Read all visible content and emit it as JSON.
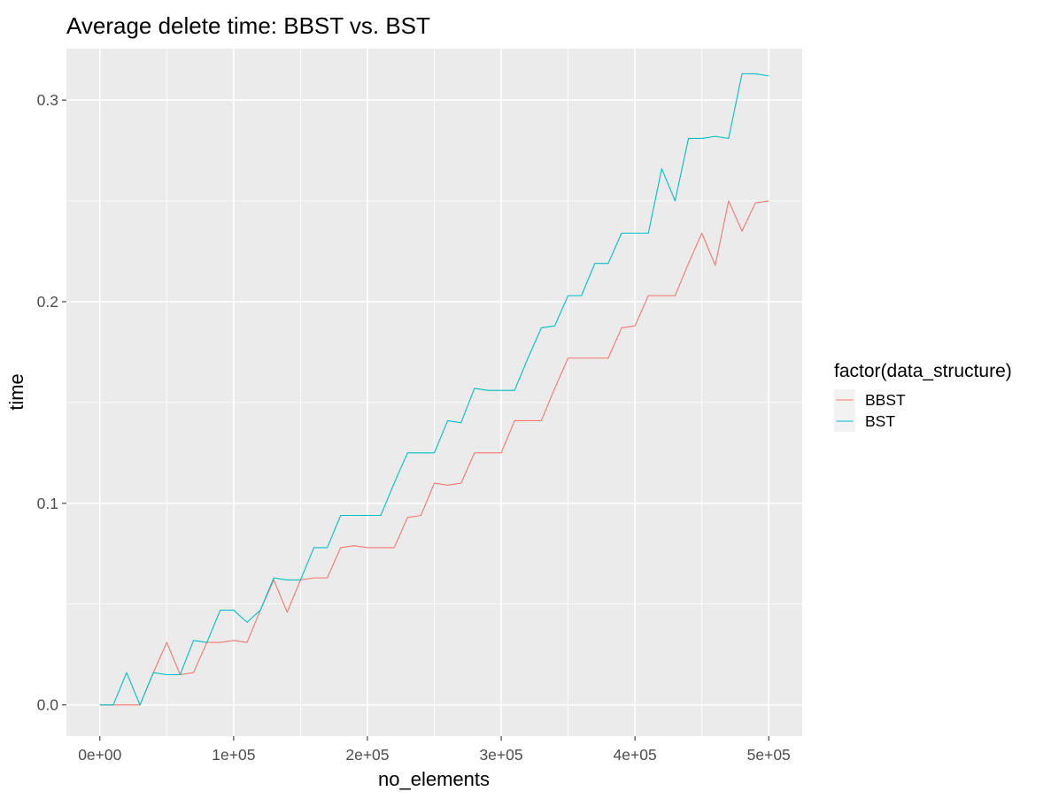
{
  "chart_data": {
    "type": "line",
    "title": "Average delete time: BBST vs. BST",
    "xlabel": "no_elements",
    "ylabel": "time",
    "xlim": [
      -25000,
      525000
    ],
    "ylim": [
      -0.0155,
      0.3255
    ],
    "x_ticks": [
      0,
      100000,
      200000,
      300000,
      400000,
      500000
    ],
    "x_tick_labels": [
      "0e+00",
      "1e+05",
      "2e+05",
      "3e+05",
      "4e+05",
      "5e+05"
    ],
    "y_ticks": [
      0.0,
      0.1,
      0.2,
      0.3
    ],
    "y_tick_labels": [
      "0.0",
      "0.1",
      "0.2",
      "0.3"
    ],
    "x_minor_ticks": [
      50000,
      150000,
      250000,
      350000,
      450000
    ],
    "y_minor_ticks": [
      0.05,
      0.15,
      0.25
    ],
    "grid": true,
    "legend": {
      "title": "factor(data_structure)",
      "position": "right"
    },
    "x": [
      0,
      10000,
      20000,
      30000,
      40000,
      50000,
      60000,
      70000,
      80000,
      90000,
      100000,
      110000,
      120000,
      130000,
      140000,
      150000,
      160000,
      170000,
      180000,
      190000,
      200000,
      210000,
      220000,
      230000,
      240000,
      250000,
      260000,
      270000,
      280000,
      290000,
      300000,
      310000,
      320000,
      330000,
      340000,
      350000,
      360000,
      370000,
      380000,
      390000,
      400000,
      410000,
      420000,
      430000,
      440000,
      450000,
      460000,
      470000,
      480000,
      490000,
      500000
    ],
    "series": [
      {
        "name": "BBST",
        "color": "#F8766D",
        "values": [
          0,
          0,
          0,
          0,
          0.016,
          0.031,
          0.015,
          0.016,
          0.031,
          0.031,
          0.032,
          0.031,
          0.047,
          0.062,
          0.046,
          0.062,
          0.063,
          0.063,
          0.078,
          0.079,
          0.078,
          0.078,
          0.078,
          0.093,
          0.094,
          0.11,
          0.109,
          0.11,
          0.125,
          0.125,
          0.125,
          0.141,
          0.141,
          0.141,
          0.157,
          0.172,
          0.172,
          0.172,
          0.172,
          0.187,
          0.188,
          0.203,
          0.203,
          0.203,
          0.219,
          0.234,
          0.218,
          0.25,
          0.235,
          0.249,
          0.25
        ]
      },
      {
        "name": "BST",
        "color": "#00BFC4",
        "values": [
          0,
          0,
          0.016,
          0,
          0.016,
          0.015,
          0.015,
          0.032,
          0.031,
          0.047,
          0.047,
          0.041,
          0.047,
          0.063,
          0.062,
          0.062,
          0.078,
          0.078,
          0.094,
          0.094,
          0.094,
          0.094,
          0.11,
          0.125,
          0.125,
          0.125,
          0.141,
          0.14,
          0.157,
          0.156,
          0.156,
          0.156,
          0.172,
          0.187,
          0.188,
          0.203,
          0.203,
          0.219,
          0.219,
          0.234,
          0.234,
          0.234,
          0.266,
          0.25,
          0.281,
          0.281,
          0.282,
          0.281,
          0.313,
          0.313,
          0.312
        ]
      }
    ]
  }
}
